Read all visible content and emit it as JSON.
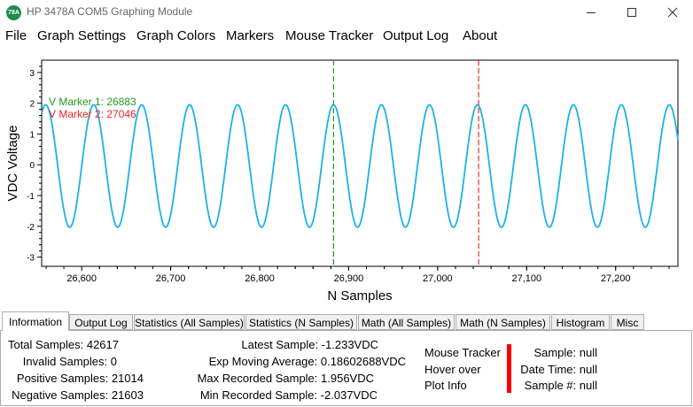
{
  "window": {
    "title": "HP 3478A COM5 Graphing Module",
    "icon_text": "78A",
    "minimize_icon": "minimize-icon",
    "maximize_icon": "maximize-icon",
    "close_icon": "close-icon"
  },
  "menu": [
    "File",
    "Graph Settings",
    "Graph Colors",
    "Markers",
    "Mouse Tracker",
    "Output Log",
    "About"
  ],
  "chart_data": {
    "type": "line",
    "title": "",
    "xlabel": "N Samples",
    "ylabel": "VDC Voltage",
    "xlim": [
      26555,
      27270
    ],
    "ylim": [
      -3.3,
      3.4
    ],
    "x_ticks": [
      "26,600",
      "26,700",
      "26,800",
      "26,900",
      "27,000",
      "27,100",
      "27,200"
    ],
    "y_ticks": [
      "3",
      "2",
      "1",
      "0",
      "-1",
      "-2",
      "-3"
    ],
    "series": [
      {
        "color": "#19b3e6",
        "waveform": "sine",
        "amplitude": 1.99,
        "offset": -0.04,
        "period_samples": 53.9,
        "peak_at_sample": 26883
      }
    ],
    "markers": [
      {
        "label": "V Marker 1: 26883",
        "x": 26883,
        "color": "#1f9a1f"
      },
      {
        "label": "V Marker 2: 27046",
        "x": 27046,
        "color": "#e52a2a"
      }
    ],
    "grid": false
  },
  "tabs": [
    "Information",
    "Output Log",
    "Statistics (All Samples)",
    "Statistics (N Samples)",
    "Math (All Samples)",
    "Math (N Samples)",
    "Histogram",
    "Misc"
  ],
  "info": {
    "total_samples": "Total Samples: 42617",
    "invalid_samples": "Invalid Samples: 0",
    "positive_samples": "Positive Samples: 21014",
    "negative_samples": "Negative Samples: 21603",
    "latest_sample": "Latest Sample: -1.233VDC",
    "exp_moving_average": "Exp Moving Average: 0.18602688VDC",
    "max_recorded": "Max Recorded Sample: 1.956VDC",
    "min_recorded": "Min Recorded Sample: -2.037VDC",
    "mouse_tracker_l1": "Mouse Tracker",
    "mouse_tracker_l2": "Hover over",
    "mouse_tracker_l3": "Plot Info",
    "sample": "Sample: null",
    "date_time": "Date Time: null",
    "sample_num": "Sample #: null",
    "indicator_color": "#ff0000"
  }
}
